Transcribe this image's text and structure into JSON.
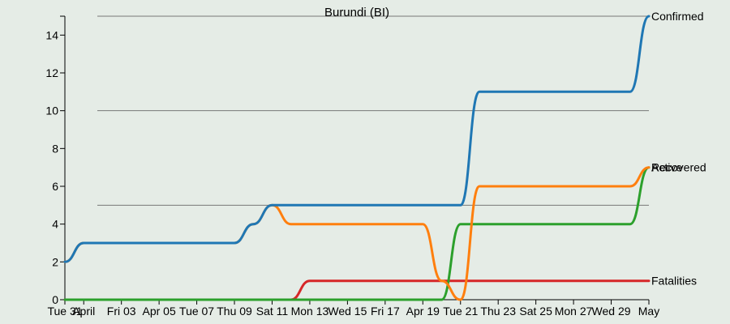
{
  "chart_data": {
    "type": "line",
    "title": "Burundi (BI)",
    "xlabel": "",
    "ylabel": "",
    "x": [
      "2020-03-31",
      "2020-04-01",
      "2020-04-02",
      "2020-04-03",
      "2020-04-04",
      "2020-04-05",
      "2020-04-06",
      "2020-04-07",
      "2020-04-08",
      "2020-04-09",
      "2020-04-10",
      "2020-04-11",
      "2020-04-12",
      "2020-04-13",
      "2020-04-14",
      "2020-04-15",
      "2020-04-16",
      "2020-04-17",
      "2020-04-18",
      "2020-04-19",
      "2020-04-20",
      "2020-04-21",
      "2020-04-22",
      "2020-04-23",
      "2020-04-24",
      "2020-04-25",
      "2020-04-26",
      "2020-04-27",
      "2020-04-28",
      "2020-04-29",
      "2020-04-30",
      "2020-05-01"
    ],
    "ylim": [
      0,
      15
    ],
    "yticks": [
      0,
      2,
      4,
      6,
      8,
      10,
      12,
      14
    ],
    "gridlines": [
      5,
      10,
      15
    ],
    "xticks": [
      {
        "date": "2020-03-31",
        "label": "Tue 31"
      },
      {
        "date": "2020-04-01",
        "label": "April"
      },
      {
        "date": "2020-04-03",
        "label": "Fri 03"
      },
      {
        "date": "2020-04-05",
        "label": "Apr 05"
      },
      {
        "date": "2020-04-07",
        "label": "Tue 07"
      },
      {
        "date": "2020-04-09",
        "label": "Thu 09"
      },
      {
        "date": "2020-04-11",
        "label": "Sat 11"
      },
      {
        "date": "2020-04-13",
        "label": "Mon 13"
      },
      {
        "date": "2020-04-15",
        "label": "Wed 15"
      },
      {
        "date": "2020-04-17",
        "label": "Fri 17"
      },
      {
        "date": "2020-04-19",
        "label": "Apr 19"
      },
      {
        "date": "2020-04-21",
        "label": "Tue 21"
      },
      {
        "date": "2020-04-23",
        "label": "Thu 23"
      },
      {
        "date": "2020-04-25",
        "label": "Sat 25"
      },
      {
        "date": "2020-04-27",
        "label": "Mon 27"
      },
      {
        "date": "2020-04-29",
        "label": "Wed 29"
      },
      {
        "date": "2020-05-01",
        "label": "May"
      }
    ],
    "series": [
      {
        "name": "Confirmed",
        "color": "#1f77b4",
        "values": [
          2,
          3,
          3,
          3,
          3,
          3,
          3,
          3,
          3,
          3,
          4,
          5,
          5,
          5,
          5,
          5,
          5,
          5,
          5,
          5,
          5,
          5,
          11,
          11,
          11,
          11,
          11,
          11,
          11,
          11,
          11,
          15
        ]
      },
      {
        "name": "Active",
        "color": "#ff7f0e",
        "values": [
          2,
          3,
          3,
          3,
          3,
          3,
          3,
          3,
          3,
          3,
          4,
          5,
          4,
          4,
          4,
          4,
          4,
          4,
          4,
          4,
          1,
          0,
          6,
          6,
          6,
          6,
          6,
          6,
          6,
          6,
          6,
          7
        ]
      },
      {
        "name": "Recovered",
        "color": "#2ca02c",
        "values": [
          0,
          0,
          0,
          0,
          0,
          0,
          0,
          0,
          0,
          0,
          0,
          0,
          0,
          0,
          0,
          0,
          0,
          0,
          0,
          0,
          0,
          4,
          4,
          4,
          4,
          4,
          4,
          4,
          4,
          4,
          4,
          7
        ]
      },
      {
        "name": "Fatalities",
        "color": "#d62728",
        "values": [
          0,
          0,
          0,
          0,
          0,
          0,
          0,
          0,
          0,
          0,
          0,
          0,
          0,
          1,
          1,
          1,
          1,
          1,
          1,
          1,
          1,
          1,
          1,
          1,
          1,
          1,
          1,
          1,
          1,
          1,
          1,
          1
        ]
      }
    ],
    "legend": "right-end labels"
  }
}
